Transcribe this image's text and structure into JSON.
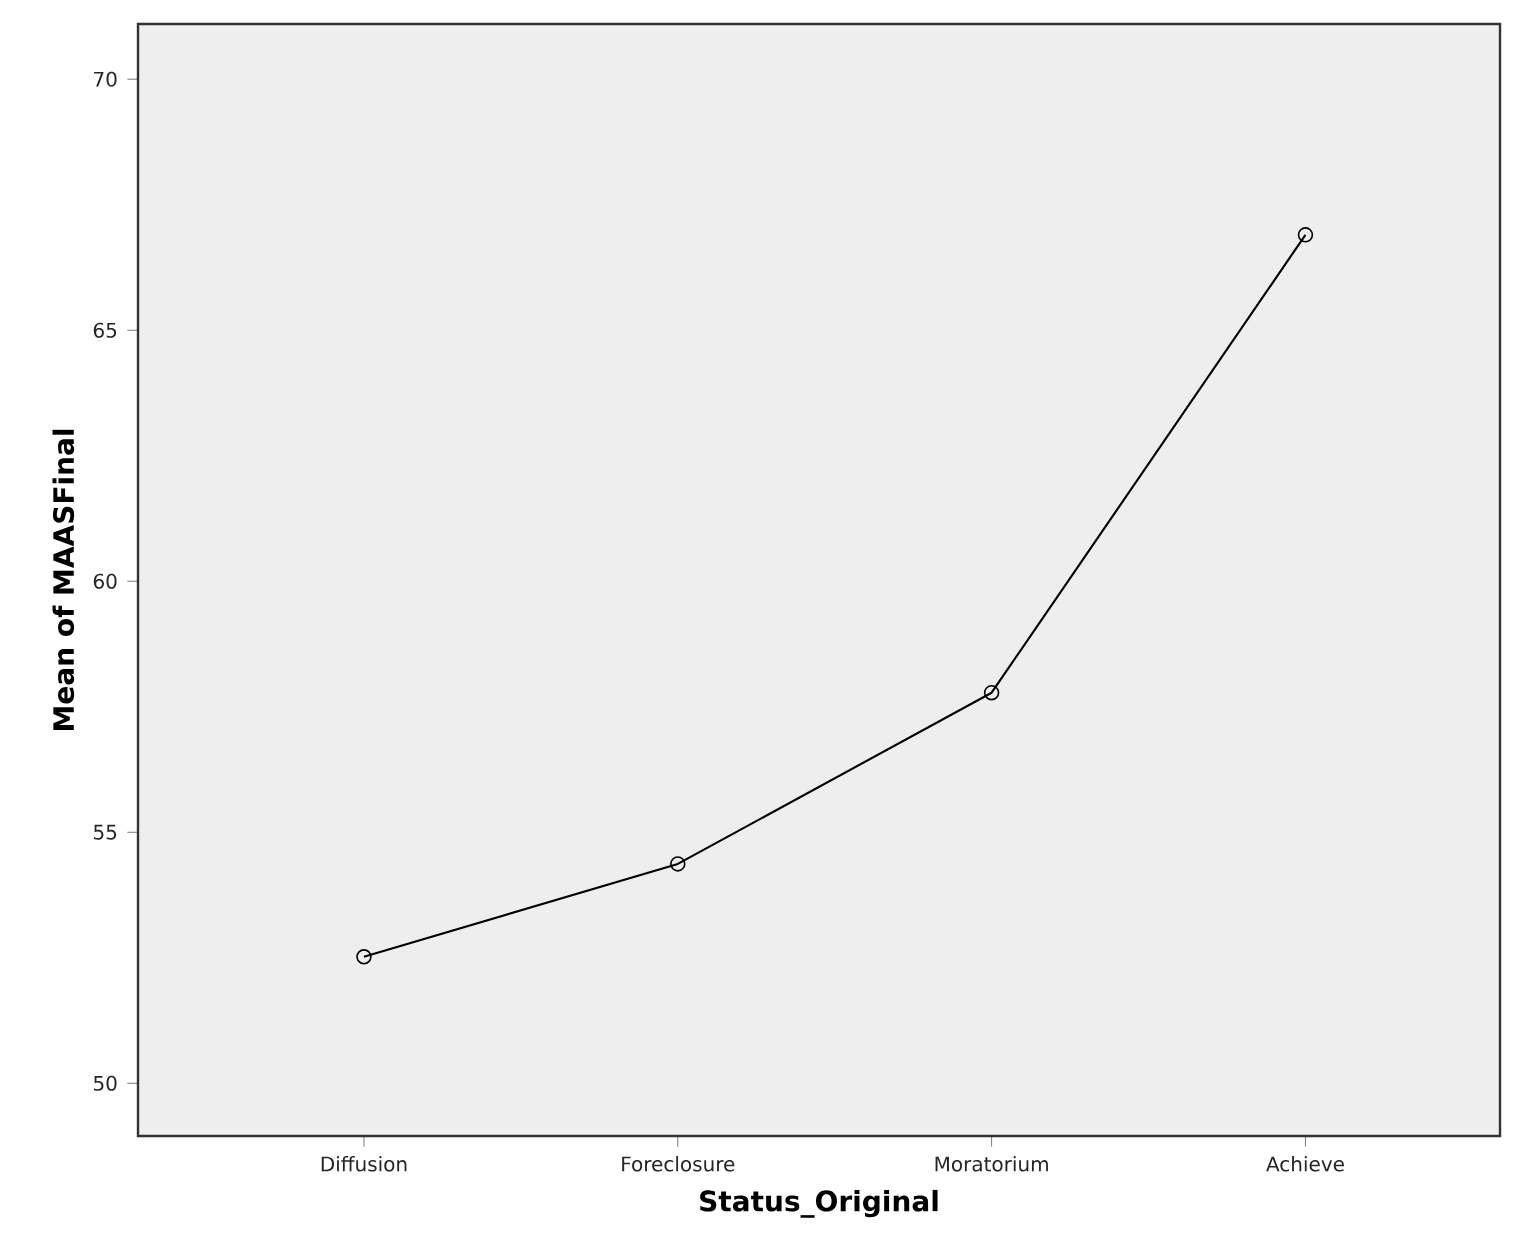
{
  "chart_data": {
    "type": "line",
    "xlabel": "Status_Original",
    "ylabel": "Mean of MAASFinal",
    "categories": [
      "Diffusion",
      "Foreclosure",
      "Moratorium",
      "Achieve"
    ],
    "values": [
      52.52,
      54.37,
      57.78,
      66.9
    ],
    "color": "#000000",
    "marker": "circle",
    "line_style": "solid",
    "ylim": [
      48.95,
      71.1
    ],
    "yticks": [
      50,
      55,
      60,
      65,
      70
    ],
    "grid": false
  }
}
